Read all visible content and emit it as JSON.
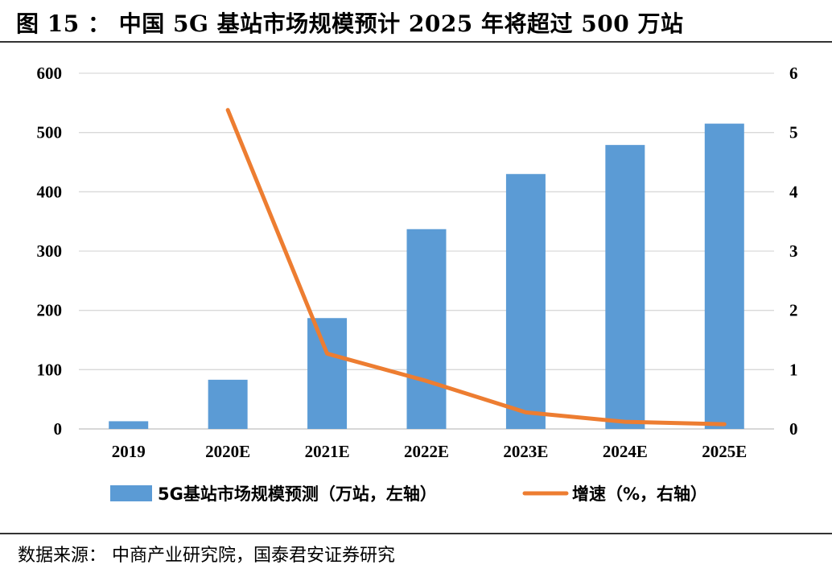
{
  "title": "图 15 ： 中国 5G 基站市场规模预计 2025 年将超过 500 万站",
  "source": "数据来源： 中商产业研究院，国泰君安证券研究",
  "colors": {
    "bar": "#5b9bd5",
    "line": "#ed7d31",
    "grid": "#d9d9d9"
  },
  "chart_data": {
    "type": "bar+line",
    "categories": [
      "2019",
      "2020E",
      "2021E",
      "2022E",
      "2023E",
      "2024E",
      "2025E"
    ],
    "series": [
      {
        "name": "5G基站市场规模预测（万站，左轴）",
        "type": "bar",
        "axis": "left",
        "values": [
          13,
          83,
          187,
          337,
          430,
          479,
          515
        ]
      },
      {
        "name": "增速（%，右轴）",
        "type": "line",
        "axis": "right",
        "values": [
          null,
          5.38,
          1.27,
          0.81,
          0.28,
          0.12,
          0.08
        ]
      }
    ],
    "y_left": {
      "ylim": [
        0,
        600
      ],
      "ticks": [
        "0",
        "100",
        "200",
        "300",
        "400",
        "500",
        "600"
      ]
    },
    "y_right": {
      "ylim": [
        0,
        6
      ],
      "ticks": [
        "0",
        "1",
        "2",
        "3",
        "4",
        "5",
        "6"
      ]
    },
    "grid": true,
    "legend": "bottom"
  }
}
